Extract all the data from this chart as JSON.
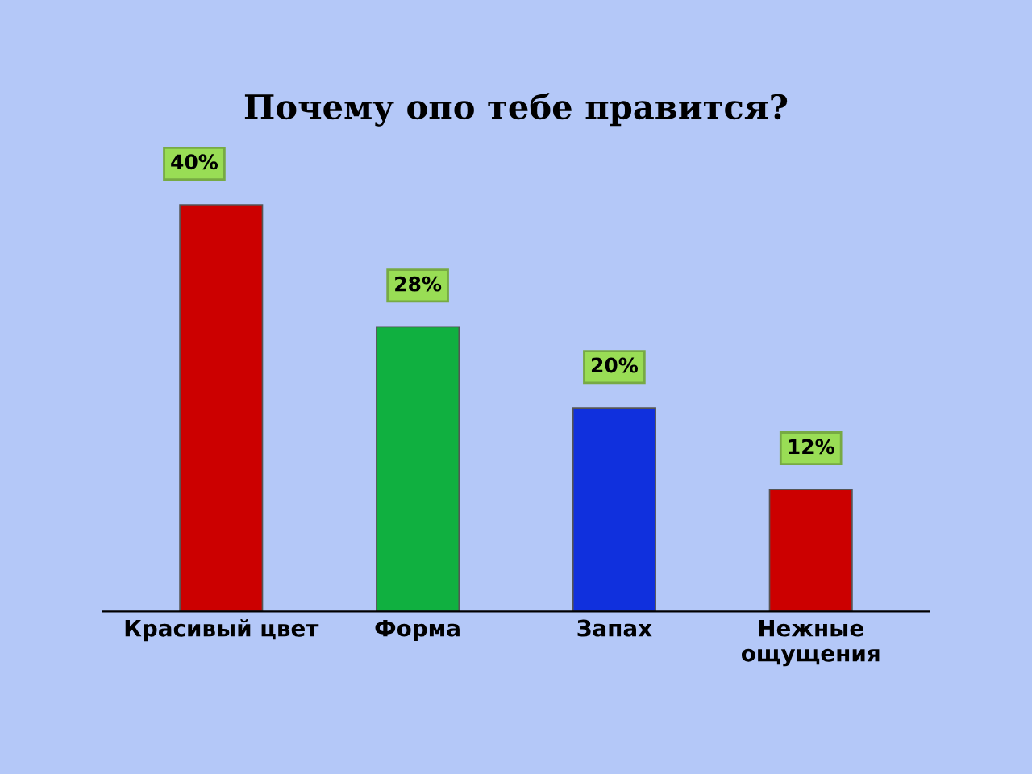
{
  "chart_data": {
    "type": "bar",
    "title": "Почему опо тебе правится?",
    "categories": [
      "Красивый цвет",
      "Форма",
      "Запах",
      "Нежные\nощущения"
    ],
    "values": [
      40,
      28,
      20,
      12
    ],
    "colors": [
      "#cc0000",
      "#10b040",
      "#1030dd",
      "#cc0000"
    ],
    "value_labels": [
      "40%",
      "28%",
      "20%",
      "12%"
    ]
  }
}
